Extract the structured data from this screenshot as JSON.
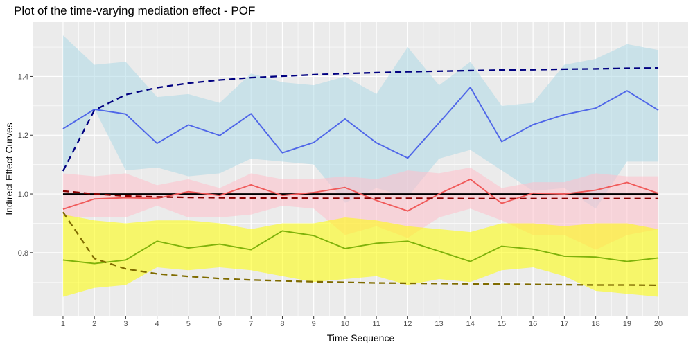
{
  "chart_data": {
    "type": "line",
    "title": "Plot of the time-varying mediation effect - POF",
    "xlabel": "Time Sequence",
    "ylabel": "Indirect Effect Curves",
    "xlim": [
      0.05,
      20.95
    ],
    "ylim": [
      0.585,
      1.585
    ],
    "x": [
      1,
      2,
      3,
      4,
      5,
      6,
      7,
      8,
      9,
      10,
      11,
      12,
      13,
      14,
      15,
      16,
      17,
      18,
      19,
      20
    ],
    "x_ticks": [
      "1",
      "2",
      "3",
      "4",
      "5",
      "6",
      "7",
      "8",
      "9",
      "10",
      "11",
      "12",
      "13",
      "14",
      "15",
      "16",
      "17",
      "18",
      "19",
      "20"
    ],
    "y_ticks": [
      0.8,
      1.0,
      1.2,
      1.4
    ],
    "y_tick_labels": [
      "0.8",
      "1.0",
      "1.2",
      "1.4"
    ],
    "grid": true,
    "background": "#ebebeb",
    "reference_line": {
      "y": 1.0,
      "color": "#000000"
    },
    "bands": [
      {
        "color": "#add8e6",
        "lower": [
          1.07,
          1.29,
          1.08,
          1.09,
          1.06,
          1.07,
          1.12,
          1.11,
          1.1,
          0.97,
          1.02,
          0.99,
          1.12,
          1.15,
          1.08,
          1.01,
          1.02,
          0.95,
          1.11,
          1.11
        ],
        "upper": [
          1.54,
          1.44,
          1.45,
          1.33,
          1.34,
          1.31,
          1.41,
          1.38,
          1.37,
          1.4,
          1.34,
          1.5,
          1.37,
          1.45,
          1.3,
          1.31,
          1.44,
          1.46,
          1.51,
          1.49
        ]
      },
      {
        "color": "#ffc0cb",
        "lower": [
          0.92,
          0.92,
          0.92,
          0.96,
          0.92,
          0.92,
          0.93,
          0.96,
          0.95,
          0.86,
          0.89,
          0.85,
          0.92,
          0.95,
          0.91,
          0.86,
          0.86,
          0.81,
          0.86,
          0.88
        ],
        "upper": [
          1.07,
          1.06,
          1.07,
          1.03,
          1.05,
          1.02,
          1.07,
          1.05,
          1.05,
          1.06,
          1.05,
          1.08,
          1.07,
          1.09,
          1.02,
          1.04,
          1.04,
          1.07,
          1.06,
          1.06
        ]
      },
      {
        "color": "#ffff00",
        "lower": [
          0.65,
          0.68,
          0.69,
          0.75,
          0.74,
          0.75,
          0.74,
          0.72,
          0.7,
          0.71,
          0.72,
          0.69,
          0.71,
          0.7,
          0.74,
          0.75,
          0.72,
          0.67,
          0.66,
          0.65
        ],
        "upper": [
          0.93,
          0.91,
          0.9,
          0.91,
          0.91,
          0.9,
          0.88,
          0.9,
          0.9,
          0.92,
          0.91,
          0.89,
          0.88,
          0.87,
          0.9,
          0.9,
          0.89,
          0.9,
          0.9,
          0.88
        ]
      }
    ],
    "series": [
      {
        "color": "#4f66e8",
        "style": "solid",
        "values": [
          1.222,
          1.288,
          1.272,
          1.172,
          1.235,
          1.199,
          1.273,
          1.14,
          1.175,
          1.255,
          1.174,
          1.122,
          1.242,
          1.363,
          1.178,
          1.236,
          1.27,
          1.292,
          1.351,
          1.285
        ]
      },
      {
        "color": "#f05a5a",
        "style": "solid",
        "values": [
          0.948,
          0.983,
          0.987,
          0.985,
          1.008,
          0.995,
          1.031,
          0.995,
          1.005,
          1.022,
          0.978,
          0.942,
          1.0,
          1.05,
          0.968,
          1.003,
          1.0,
          1.013,
          1.039,
          1.002
        ]
      },
      {
        "color": "#7fb20a",
        "style": "solid",
        "values": [
          0.775,
          0.763,
          0.775,
          0.839,
          0.816,
          0.829,
          0.81,
          0.874,
          0.858,
          0.814,
          0.832,
          0.839,
          0.805,
          0.77,
          0.822,
          0.812,
          0.788,
          0.785,
          0.77,
          0.782
        ]
      },
      {
        "color": "#000080",
        "style": "dashed",
        "values": [
          1.078,
          1.285,
          1.338,
          1.362,
          1.377,
          1.388,
          1.396,
          1.401,
          1.406,
          1.41,
          1.413,
          1.416,
          1.418,
          1.42,
          1.422,
          1.423,
          1.425,
          1.426,
          1.428,
          1.429
        ]
      },
      {
        "color": "#8b0000",
        "style": "dashed",
        "values": [
          1.01,
          1.0,
          0.993,
          0.99,
          0.988,
          0.987,
          0.986,
          0.986,
          0.985,
          0.985,
          0.985,
          0.985,
          0.985,
          0.984,
          0.984,
          0.984,
          0.984,
          0.984,
          0.984,
          0.984
        ]
      },
      {
        "color": "#7f6b00",
        "style": "dashed",
        "values": [
          0.938,
          0.78,
          0.745,
          0.728,
          0.719,
          0.712,
          0.707,
          0.704,
          0.701,
          0.699,
          0.697,
          0.696,
          0.695,
          0.694,
          0.693,
          0.692,
          0.691,
          0.69,
          0.69,
          0.689
        ]
      }
    ]
  }
}
